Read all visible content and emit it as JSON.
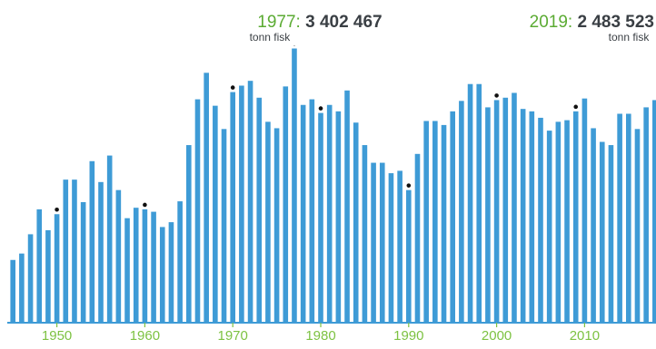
{
  "chart_data": {
    "type": "bar",
    "title": "",
    "xlabel": "",
    "ylabel": "",
    "ylim": [
      0,
      3600000
    ],
    "grid": false,
    "legend": "none",
    "x": [
      1945,
      1946,
      1947,
      1948,
      1949,
      1950,
      1951,
      1952,
      1953,
      1954,
      1955,
      1956,
      1957,
      1958,
      1959,
      1960,
      1961,
      1962,
      1963,
      1964,
      1965,
      1966,
      1967,
      1968,
      1969,
      1970,
      1971,
      1972,
      1973,
      1974,
      1975,
      1976,
      1977,
      1978,
      1979,
      1980,
      1981,
      1982,
      1983,
      1984,
      1985,
      1986,
      1987,
      1988,
      1989,
      1990,
      1991,
      1992,
      1993,
      1994,
      1995,
      1996,
      1997,
      1998,
      1999,
      2000,
      2001,
      2002,
      2003,
      2004,
      2005,
      2006,
      2007,
      2008,
      2009,
      2010,
      2011,
      2012,
      2013,
      2014,
      2015,
      2016,
      2017,
      2018,
      2019
    ],
    "values": [
      770000,
      850000,
      1090000,
      1400000,
      1140000,
      1340000,
      1770000,
      1770000,
      1490000,
      2000000,
      1740000,
      2070000,
      1640000,
      1290000,
      1420000,
      1400000,
      1370000,
      1180000,
      1240000,
      1500000,
      2200000,
      2770000,
      3100000,
      2690000,
      2400000,
      2860000,
      2940000,
      3000000,
      2790000,
      2490000,
      2410000,
      2930000,
      3402467,
      2700000,
      2770000,
      2600000,
      2700000,
      2620000,
      2880000,
      2480000,
      2200000,
      1980000,
      1980000,
      1850000,
      1880000,
      1640000,
      2090000,
      2500000,
      2500000,
      2450000,
      2620000,
      2750000,
      2960000,
      2960000,
      2670000,
      2760000,
      2790000,
      2850000,
      2650000,
      2620000,
      2540000,
      2380000,
      2490000,
      2510000,
      2620000,
      2780000,
      2410000,
      2240000,
      2200000,
      2590000,
      2590000,
      2400000,
      2670000,
      2760000,
      2483523
    ],
    "marked_years": [
      1950,
      1960,
      1970,
      1980,
      1990,
      2000,
      2009
    ],
    "x_ticks": [
      1950,
      1960,
      1970,
      1980,
      1990,
      2000,
      2010
    ],
    "colors": {
      "bar": "#3e9bd6",
      "tick_text": "#7dc242",
      "annotation_year": "#5bab33",
      "annotation_value": "#3a3f44",
      "marker": "#111111",
      "axis": "#3e9bd6"
    }
  },
  "annotations": [
    {
      "year": 1977,
      "year_label": "1977:",
      "value_label": "3 402 467",
      "unit": "tonn fisk"
    },
    {
      "year": 2019,
      "year_label": "2019:",
      "value_label": "2 483 523",
      "unit": "tonn fisk"
    }
  ]
}
